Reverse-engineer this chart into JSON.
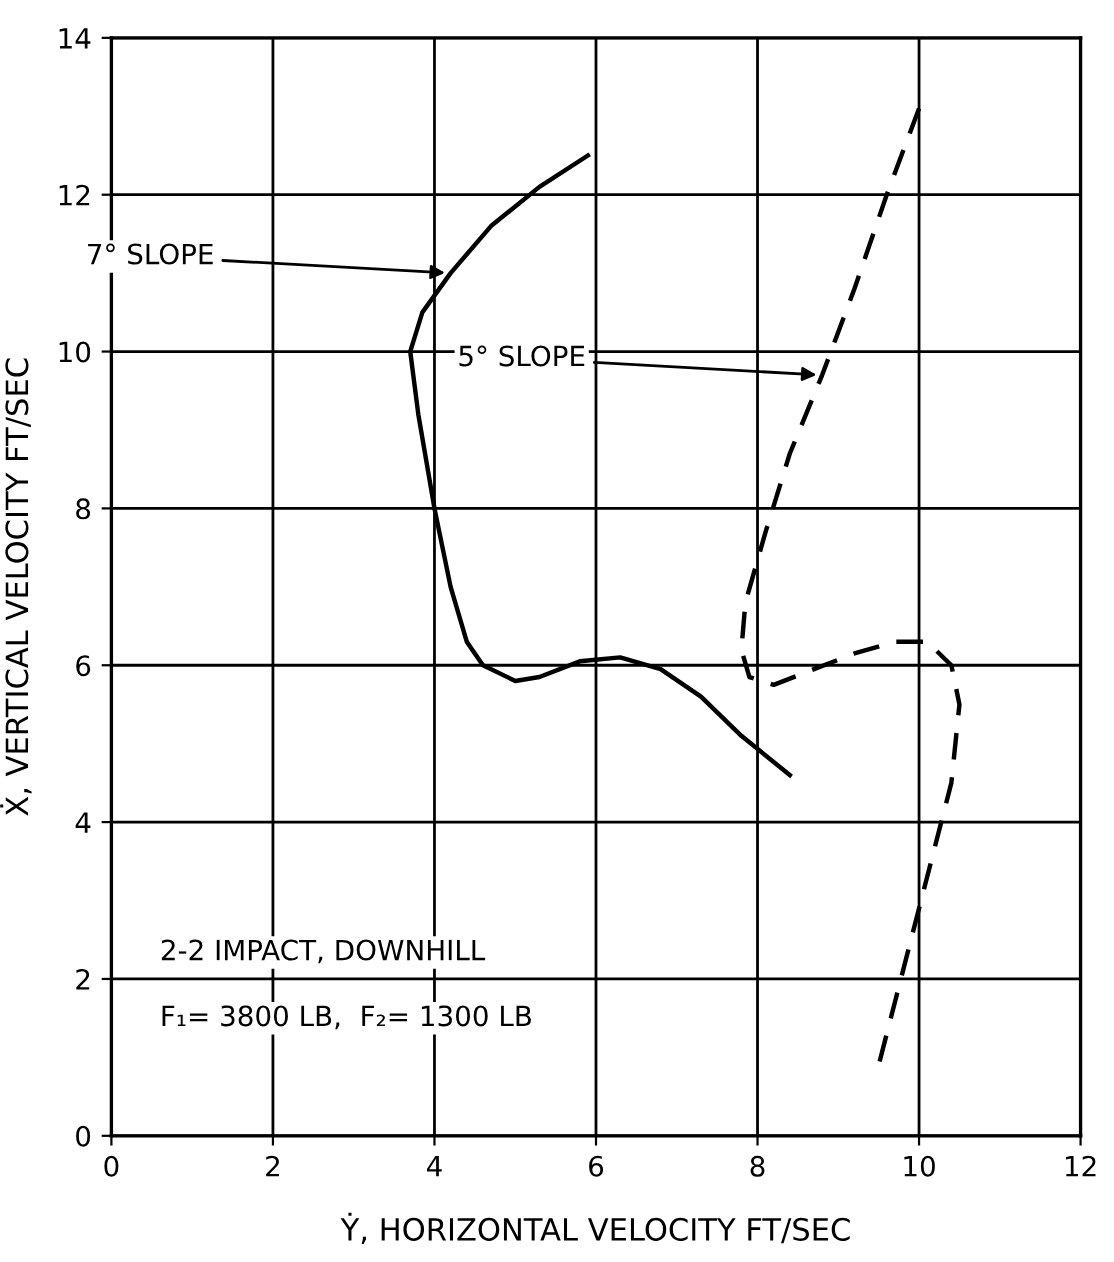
{
  "chart_data": {
    "type": "line",
    "xlabel": "Ẏ, HORIZONTAL VELOCITY FT/SEC",
    "ylabel": "Ẋ, VERTICAL VELOCITY FT/SEC",
    "xlim": [
      0,
      12
    ],
    "ylim": [
      0,
      14
    ],
    "xticks": [
      0,
      2,
      4,
      6,
      8,
      10,
      12
    ],
    "yticks": [
      0,
      2,
      4,
      6,
      8,
      10,
      12,
      14
    ],
    "grid": true,
    "series": [
      {
        "name": "7° SLOPE",
        "color": "#000000",
        "line_style": "solid",
        "x": [
          5.9,
          5.3,
          4.7,
          4.2,
          3.85,
          3.7,
          3.8,
          4.0,
          4.2,
          4.4,
          4.6,
          5.0,
          5.3,
          5.8,
          6.3,
          6.8,
          7.3,
          7.8,
          8.4
        ],
        "values": [
          12.5,
          12.1,
          11.6,
          11.0,
          10.5,
          10.0,
          9.2,
          8.0,
          7.0,
          6.3,
          6.0,
          5.8,
          5.85,
          6.05,
          6.1,
          5.95,
          5.6,
          5.1,
          4.6
        ]
      },
      {
        "name": "5° SLOPE",
        "color": "#000000",
        "line_style": "dashed",
        "x": [
          10.0,
          9.6,
          9.2,
          8.8,
          8.4,
          8.1,
          7.85,
          7.8,
          7.9,
          8.2,
          8.7,
          9.2,
          9.7,
          10.1,
          10.4,
          10.5,
          10.4,
          10.1,
          9.9,
          9.7,
          9.5
        ],
        "values": [
          13.1,
          12.0,
          10.8,
          9.7,
          8.7,
          7.7,
          6.8,
          6.2,
          5.85,
          5.75,
          5.95,
          6.15,
          6.3,
          6.3,
          6.0,
          5.5,
          4.5,
          3.3,
          2.5,
          1.7,
          0.9
        ]
      }
    ],
    "annotations": [
      "2-2 IMPACT, DOWNHILL",
      "F₁= 3800 LB,  F₂= 1300 LB"
    ]
  }
}
